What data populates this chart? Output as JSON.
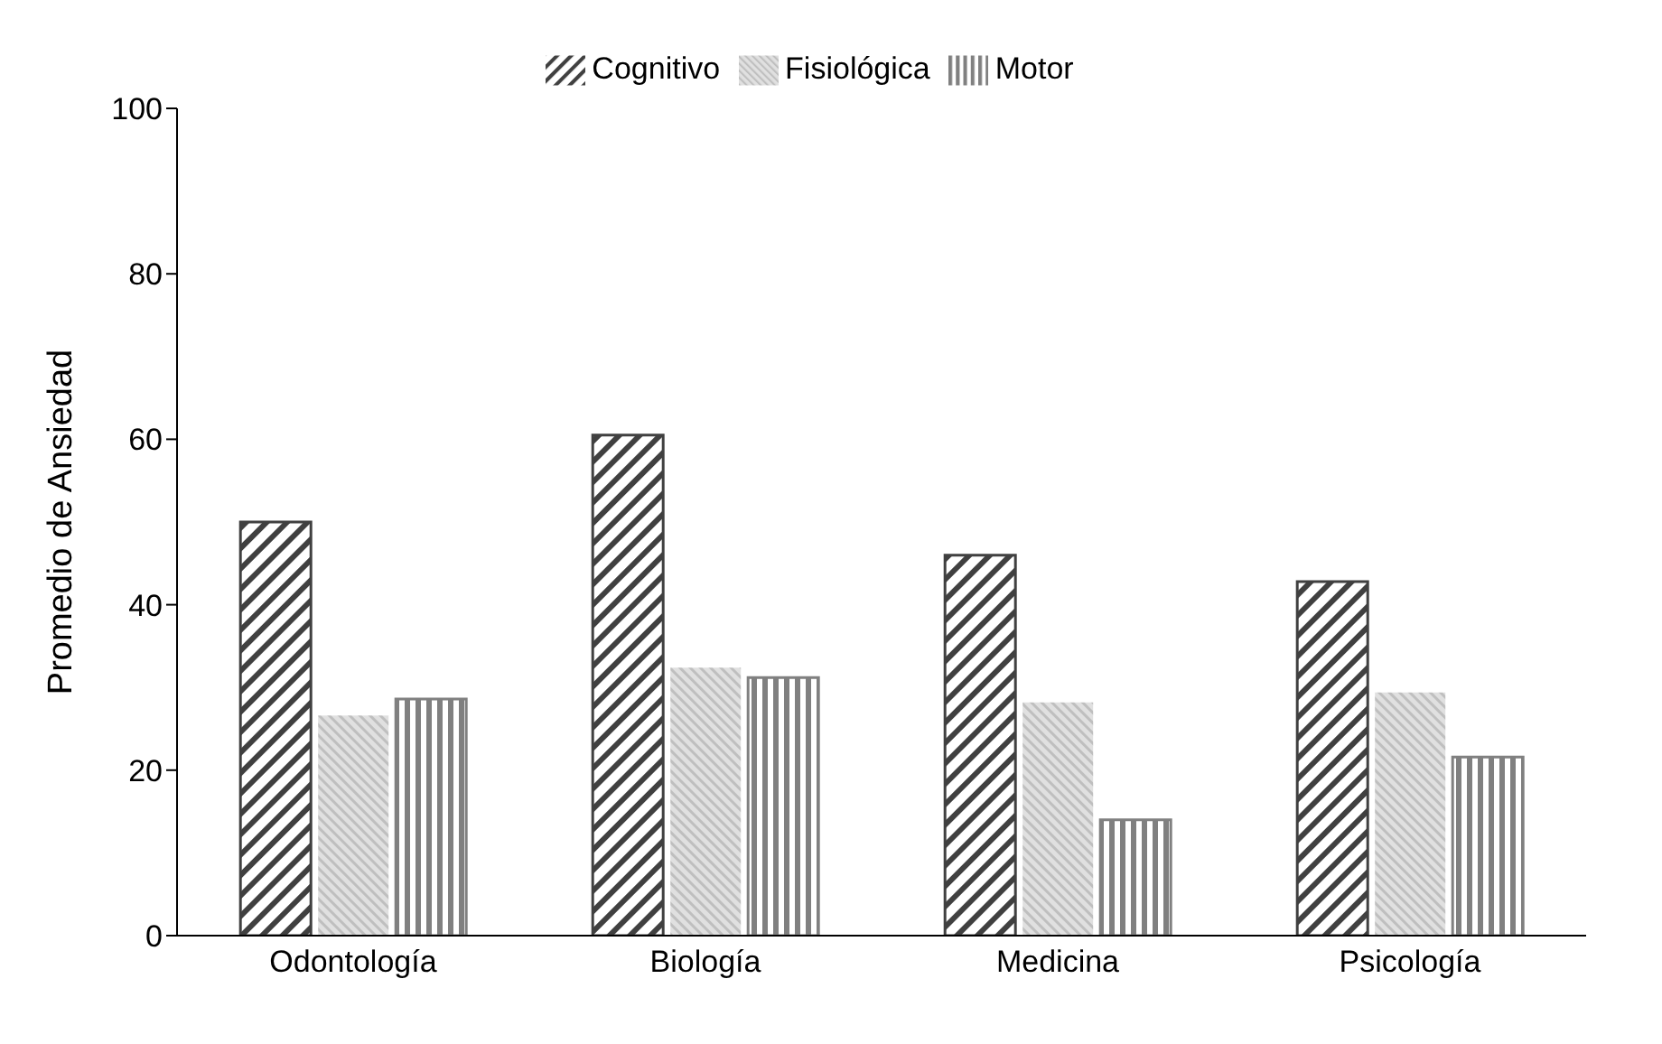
{
  "chart_data": {
    "type": "bar",
    "ylabel": "Promedio de Ansiedad",
    "categories": [
      "Odontología",
      "Biología",
      "Medicina",
      "Psicología"
    ],
    "series": [
      {
        "name": "Cognitivo",
        "color": "#404040",
        "values": [
          50,
          60.5,
          46,
          42.8
        ]
      },
      {
        "name": "Fisiológica",
        "color": "#bfbfbf",
        "values": [
          26.6,
          32.4,
          28.2,
          29.4
        ]
      },
      {
        "name": "Motor",
        "color": "#808080",
        "values": [
          28.6,
          31.2,
          14,
          21.6
        ]
      }
    ],
    "ylim": [
      0,
      100
    ],
    "yticks": [
      0,
      20,
      40,
      60,
      80,
      100
    ],
    "grid": false,
    "legend": "top"
  }
}
